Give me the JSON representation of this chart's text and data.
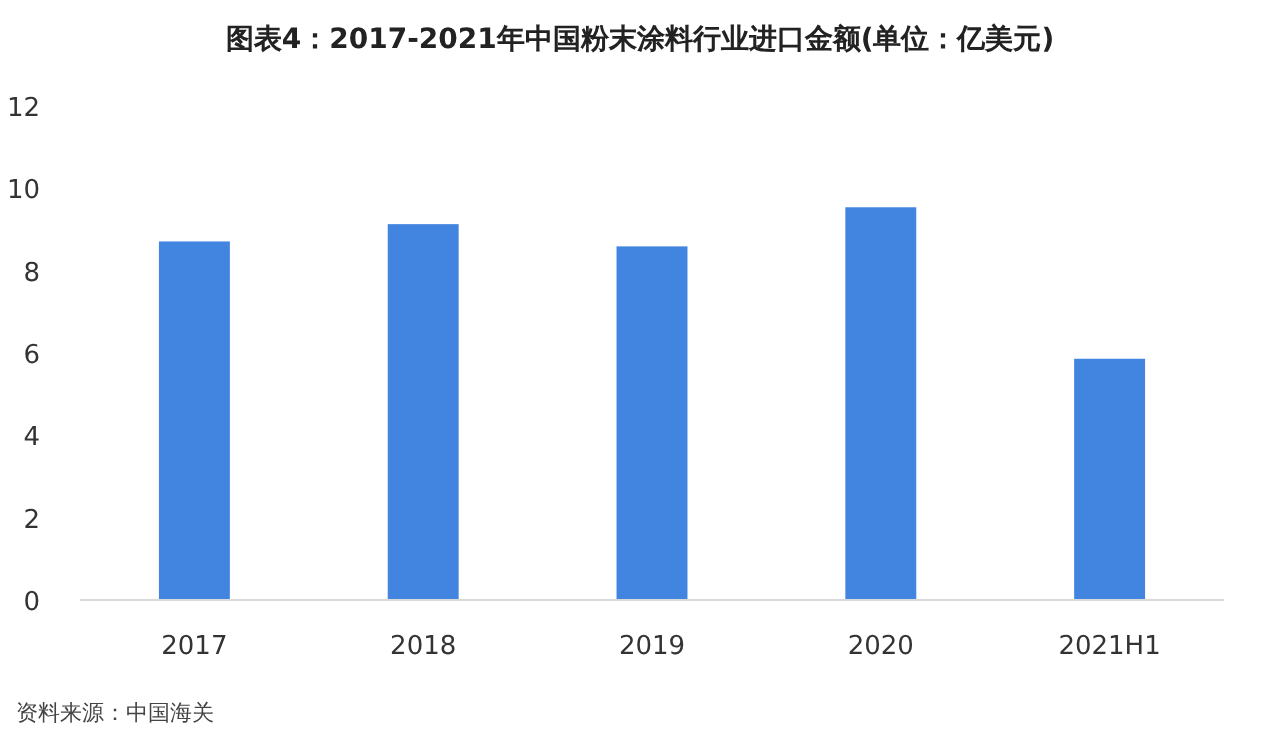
{
  "chart_data": {
    "type": "bar",
    "title": "图表4：2017-2021年中国粉末涂料行业进口金额(单位：亿美元)",
    "categories": [
      "2017",
      "2018",
      "2019",
      "2020",
      "2021H1"
    ],
    "values": [
      8.71,
      9.13,
      8.59,
      9.54,
      5.86
    ],
    "color": "#4285e0",
    "ylim": [
      0,
      12
    ],
    "yticks": [
      0,
      2,
      4,
      6,
      8,
      10,
      12
    ],
    "grid": false,
    "annotations": [
      "资料来源：中国海关"
    ]
  }
}
